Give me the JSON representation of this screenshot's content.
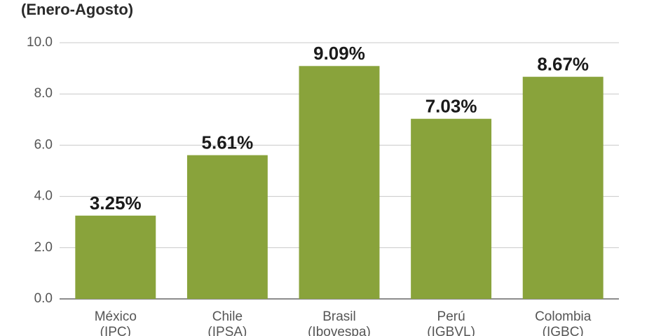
{
  "chart_data": {
    "type": "bar",
    "subtitle": "(Enero-Agosto)",
    "categories": [
      [
        "México",
        "(IPC)"
      ],
      [
        "Chile",
        "(IPSA)"
      ],
      [
        "Brasil",
        "(Ibovespa)"
      ],
      [
        "Perú",
        "(IGBVL)"
      ],
      [
        "Colombia",
        "(IGBC)"
      ]
    ],
    "values": [
      3.25,
      5.61,
      9.09,
      7.03,
      8.67
    ],
    "value_labels": [
      "3.25%",
      "5.61%",
      "9.09%",
      "7.03%",
      "8.67%"
    ],
    "color": "#89a33b",
    "ylim": [
      0,
      10
    ],
    "yticks": [
      {
        "value": 0,
        "label": "0.0"
      },
      {
        "value": 2,
        "label": "2.0"
      },
      {
        "value": 4,
        "label": "4.0"
      },
      {
        "value": 6,
        "label": "6.0"
      },
      {
        "value": 8,
        "label": "8.0"
      },
      {
        "value": 10,
        "label": "10.0"
      }
    ],
    "grid": true
  }
}
